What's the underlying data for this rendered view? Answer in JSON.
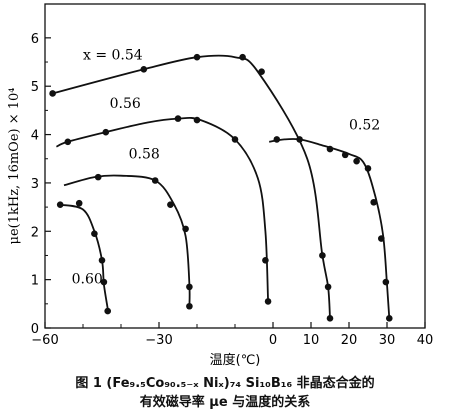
{
  "chart_data": {
    "type": "line",
    "ylabel": "μe(1kHz, 16mOe) × 10⁴",
    "xlabel": "温度(℃)",
    "xlim": [
      -60,
      40
    ],
    "ylim": [
      0,
      6.7
    ],
    "x_ticks": [
      "−60",
      "−30",
      "0",
      "10",
      "20",
      "30",
      "40"
    ],
    "x_tick_values": [
      -60,
      -30,
      0,
      10,
      20,
      30,
      40
    ],
    "y_ticks": [
      "0",
      "1",
      "2",
      "3",
      "4",
      "5",
      "6"
    ],
    "grid": false,
    "series": [
      {
        "name": "x = 0.54",
        "points": [
          [
            -58,
            4.85
          ],
          [
            -34,
            5.35
          ],
          [
            -20,
            5.6
          ],
          [
            -10,
            5.6
          ],
          [
            -4,
            5.3
          ],
          [
            9,
            3.5
          ],
          [
            13,
            1.5
          ],
          [
            14.5,
            0.85
          ],
          [
            15,
            0.2
          ]
        ],
        "markers": [
          [
            -58,
            4.85
          ],
          [
            -34,
            5.35
          ],
          [
            -20,
            5.6
          ],
          [
            -8,
            5.6
          ],
          [
            -3,
            5.3
          ],
          [
            13,
            1.5
          ],
          [
            14.5,
            0.85
          ],
          [
            15,
            0.2
          ]
        ],
        "label_at": [
          -50,
          5.55
        ]
      },
      {
        "name": "0.56",
        "points": [
          [
            -57,
            3.75
          ],
          [
            -54,
            3.85
          ],
          [
            -44,
            4.05
          ],
          [
            -33,
            4.25
          ],
          [
            -25,
            4.33
          ],
          [
            -19,
            4.3
          ],
          [
            -10,
            3.9
          ],
          [
            -4,
            3.1
          ],
          [
            -2,
            2.0
          ],
          [
            -1.3,
            0.55
          ]
        ],
        "markers": [
          [
            -54,
            3.85
          ],
          [
            -44,
            4.05
          ],
          [
            -25,
            4.33
          ],
          [
            -20,
            4.3
          ],
          [
            -10,
            3.9
          ],
          [
            -2,
            1.4
          ],
          [
            -1.3,
            0.55
          ]
        ],
        "label_at": [
          -43,
          4.55
        ]
      },
      {
        "name": "0.58",
        "points": [
          [
            -55,
            2.95
          ],
          [
            -47,
            3.12
          ],
          [
            -40,
            3.15
          ],
          [
            -31,
            3.05
          ],
          [
            -26,
            2.55
          ],
          [
            -23,
            1.9
          ],
          [
            -22,
            0.9
          ],
          [
            -22,
            0.45
          ]
        ],
        "markers": [
          [
            -46,
            3.12
          ],
          [
            -31,
            3.05
          ],
          [
            -27,
            2.55
          ],
          [
            -23,
            2.05
          ],
          [
            -22,
            0.85
          ],
          [
            -22,
            0.45
          ]
        ],
        "label_at": [
          -38,
          3.5
        ]
      },
      {
        "name": "0.60",
        "points": [
          [
            -56,
            2.55
          ],
          [
            -50,
            2.45
          ],
          [
            -47,
            2.0
          ],
          [
            -45,
            1.4
          ],
          [
            -44.5,
            0.9
          ],
          [
            -43.5,
            0.4
          ]
        ],
        "markers": [
          [
            -56,
            2.55
          ],
          [
            -51,
            2.58
          ],
          [
            -47,
            1.95
          ],
          [
            -45,
            1.4
          ],
          [
            -44.5,
            0.95
          ],
          [
            -43.5,
            0.35
          ]
        ],
        "label_at": [
          -53,
          0.92
        ]
      },
      {
        "name": "0.52",
        "points": [
          [
            -1,
            3.85
          ],
          [
            3,
            3.9
          ],
          [
            7,
            3.9
          ],
          [
            12,
            3.8
          ],
          [
            20,
            3.6
          ],
          [
            24,
            3.4
          ],
          [
            27,
            2.7
          ],
          [
            29,
            1.9
          ],
          [
            30,
            0.9
          ],
          [
            30.6,
            0.2
          ]
        ],
        "markers": [
          [
            1,
            3.9
          ],
          [
            7,
            3.9
          ],
          [
            15,
            3.7
          ],
          [
            19,
            3.58
          ],
          [
            22,
            3.45
          ],
          [
            25,
            3.3
          ],
          [
            26.5,
            2.6
          ],
          [
            28.5,
            1.85
          ],
          [
            29.7,
            0.95
          ],
          [
            30.6,
            0.2
          ]
        ],
        "label_at": [
          20,
          4.1
        ]
      }
    ]
  },
  "caption": {
    "line1": "图 1  (Fe₉.₅Co₉₀.₅₋ₓ Niₓ)₇₄ Si₁₀B₁₆ 非晶态合金的",
    "line2": "有效磁导率 μe 与温度的关系"
  }
}
